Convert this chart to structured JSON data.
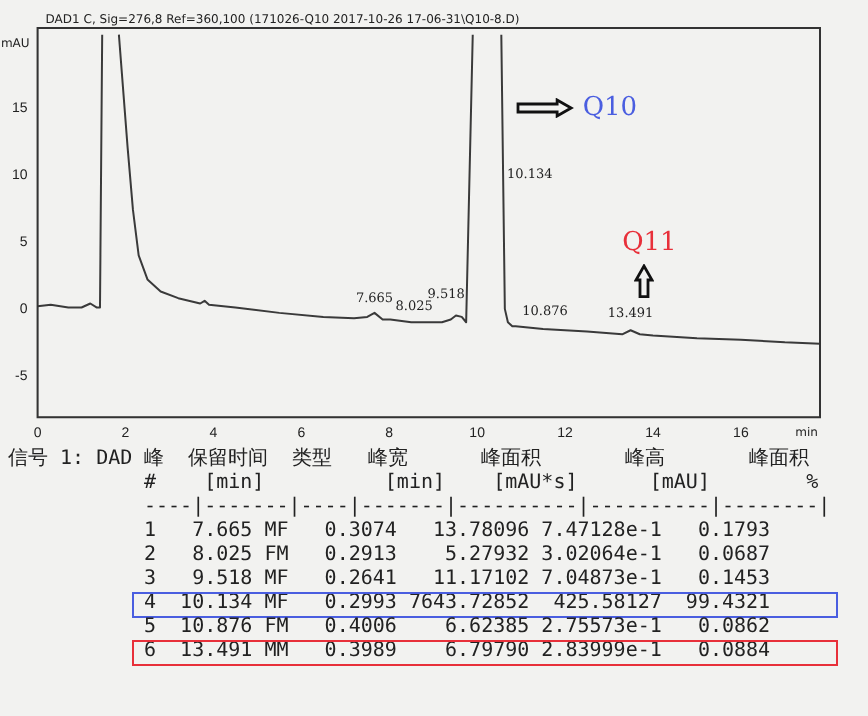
{
  "chart_data": {
    "type": "line",
    "title": "DAD1 C, Sig=276,8 Ref=360,100 (171026-Q10 2017-10-26 17-06-31\\Q10-8.D)",
    "xlabel": "min",
    "ylabel": "mAU",
    "x": [
      0,
      0.3,
      0.7,
      1.0,
      1.2,
      1.35,
      1.42,
      1.47,
      1.6,
      1.85,
      2.05,
      2.17,
      2.3,
      2.5,
      2.8,
      3.2,
      3.7,
      3.8,
      3.9,
      4.5,
      5.5,
      6.5,
      7.2,
      7.5,
      7.665,
      7.85,
      8.025,
      8.5,
      9.2,
      9.4,
      9.518,
      9.65,
      9.75,
      9.9,
      10.2,
      10.55,
      10.63,
      10.7,
      10.8,
      10.876,
      11.5,
      12.5,
      13.3,
      13.491,
      13.7,
      14,
      15,
      16,
      17,
      17.8
    ],
    "values": [
      0.2,
      0.3,
      0.1,
      0.1,
      0.4,
      0.1,
      0.1,
      20.5,
      null,
      20.5,
      12,
      7.4,
      4,
      2.2,
      1.3,
      0.8,
      0.4,
      0.6,
      0.3,
      0.1,
      -0.3,
      -0.6,
      -0.7,
      -0.6,
      -0.3,
      -0.8,
      -0.8,
      -1.0,
      -1.0,
      -0.8,
      -0.5,
      -0.6,
      -1.0,
      20.5,
      null,
      20.5,
      0,
      -1.0,
      -1.3,
      -1.3,
      -1.5,
      -1.7,
      -1.9,
      -1.6,
      -1.9,
      -2.0,
      -2.2,
      -2.3,
      -2.5,
      -2.6
    ],
    "color": "#3a3a3a",
    "xlim": [
      0,
      17.8
    ],
    "ylim": [
      -8.1,
      21
    ],
    "xticks": [
      0,
      2,
      4,
      6,
      8,
      10,
      12,
      14,
      16
    ],
    "yticks": [
      -5,
      0,
      5,
      10,
      15
    ],
    "grid": false,
    "legend": false,
    "marker": "none",
    "line_style": "solid",
    "annotations": [
      "Q10",
      "Q11",
      "10.134",
      "信号 1: DAD",
      "峰  保留时间  类型   峰宽      峰面积       峰高       峰面积",
      "#    [min]          [min]    [mAU*s]      [mAU]        %",
      "----|-------|----|-------|----------|----------|--------|",
      "1   7.665 MF   0.3074   13.78096 7.47128e-1   0.1793",
      "2   8.025 FM   0.2913    5.27932 3.02064e-1   0.0687",
      "3   9.518 MF   0.2641   11.17102 7.04873e-1   0.1453",
      "4  10.134 MF   0.2993 7643.72852  425.58127  99.4321",
      "5  10.876 FM   0.4006    6.62385 2.75573e-1   0.0862",
      "6  13.491 MM   0.3989    6.79790 2.83999e-1   0.0884",
      {
        "text": "7.665",
        "x": 7.665,
        "y": -0.3
      },
      {
        "text": "8.025",
        "x": 8.025,
        "y": -0.8
      },
      {
        "text": "9.518",
        "x": 9.518,
        "y": -0.5
      },
      {
        "text": "10.876",
        "x": 10.876,
        "y": -1.3
      },
      {
        "text": "13.491",
        "x": 13.491,
        "y": -1.6
      }
    ]
  }
}
